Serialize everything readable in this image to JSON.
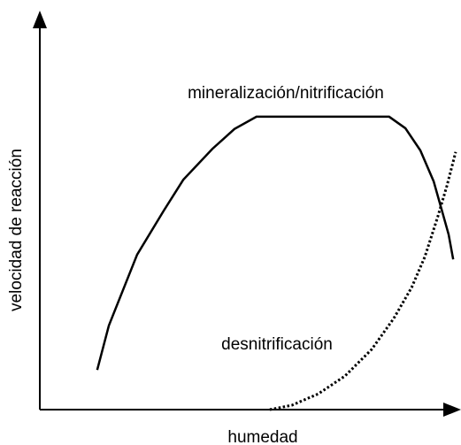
{
  "chart_data": {
    "type": "line",
    "x_label": "humedad",
    "y_label": "velocidad de reacción",
    "xlim": [
      0,
      100
    ],
    "ylim": [
      0,
      100
    ],
    "series": [
      {
        "name": "mineralización/nitrificación",
        "color": "#000000",
        "style": "solid",
        "x": [
          13.8,
          16.6,
          23.4,
          29.8,
          34.5,
          41.5,
          46.8,
          52.1,
          84.0,
          87.9,
          91.5,
          94.7,
          96.8,
          98.3,
          99.4
        ],
        "values": [
          10.0,
          21.2,
          39.1,
          50.2,
          58.0,
          65.8,
          70.8,
          73.9,
          73.9,
          71.0,
          65.4,
          57.6,
          49.8,
          44.2,
          37.9
        ]
      },
      {
        "name": "desnitrificación",
        "color": "#000000",
        "style": "dotted",
        "x": [
          55.3,
          60.6,
          67.0,
          73.4,
          79.8,
          85.1,
          89.4,
          92.6,
          95.7,
          97.9,
          100.0
        ],
        "values": [
          0,
          1.1,
          4.0,
          8.5,
          15.2,
          23.0,
          30.8,
          38.6,
          48.7,
          56.5,
          65.0
        ]
      }
    ]
  }
}
